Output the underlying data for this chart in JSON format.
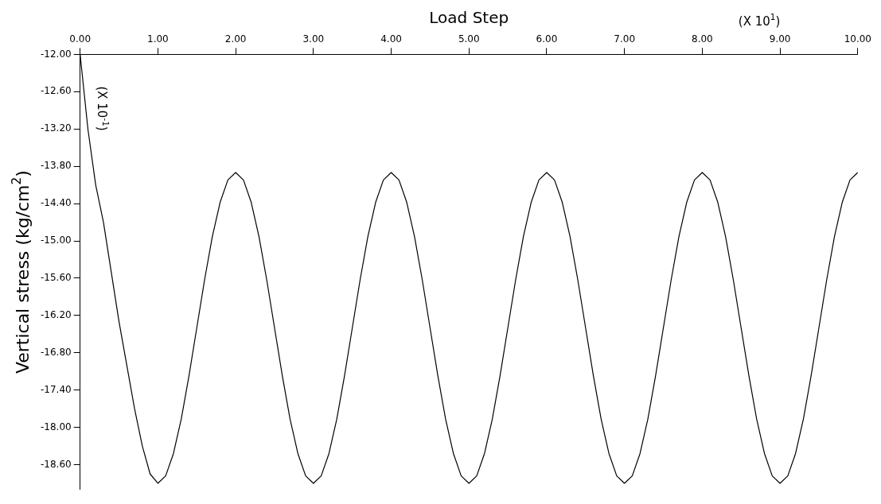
{
  "chart_data": {
    "type": "line",
    "xlabel": "Load Step",
    "ylabel": "Vertical stress (kg/cm$^{2}$)",
    "annotations": [
      "(X 10$^{1}$)",
      "(X 10$^{-1}$)"
    ],
    "xlim": [
      0,
      10
    ],
    "ylim": [
      -19.0,
      -12.0
    ],
    "xticks": [
      {
        "value": 0,
        "label": "0.00"
      },
      {
        "value": 1,
        "label": "1.00"
      },
      {
        "value": 2,
        "label": "2.00"
      },
      {
        "value": 3,
        "label": "3.00"
      },
      {
        "value": 4,
        "label": "4.00"
      },
      {
        "value": 5,
        "label": "5.00"
      },
      {
        "value": 6,
        "label": "6.00"
      },
      {
        "value": 7,
        "label": "7.00"
      },
      {
        "value": 8,
        "label": "8.00"
      },
      {
        "value": 9,
        "label": "9.00"
      },
      {
        "value": 10,
        "label": "10.00"
      }
    ],
    "yticks": [
      {
        "value": -12,
        "label": "-12.00"
      },
      {
        "value": -12.6,
        "label": "-12.60"
      },
      {
        "value": -13.2,
        "label": "-13.20"
      },
      {
        "value": -13.8,
        "label": "-13.80"
      },
      {
        "value": -14.4,
        "label": "-14.40"
      },
      {
        "value": -15,
        "label": "-15.00"
      },
      {
        "value": -15.6,
        "label": "-15.60"
      },
      {
        "value": -16.2,
        "label": "-16.20"
      },
      {
        "value": -16.8,
        "label": "-16.80"
      },
      {
        "value": -17.4,
        "label": "-17.40"
      },
      {
        "value": -18,
        "label": "-18.00"
      },
      {
        "value": -18.6,
        "label": "-18.60"
      }
    ],
    "marker": "none",
    "line_style": "solid",
    "x": [
      0,
      0.1,
      0.2,
      0.3,
      0.4,
      0.5,
      0.6,
      0.7,
      0.8,
      0.9,
      1.0,
      1.1,
      1.2,
      1.3,
      1.4,
      1.5,
      1.6,
      1.7,
      1.8,
      1.9,
      2.0,
      2.1,
      2.2,
      2.3,
      2.4,
      2.5,
      2.6,
      2.7,
      2.8,
      2.9,
      3.0,
      3.1,
      3.2,
      3.3,
      3.4,
      3.5,
      3.6,
      3.7,
      3.8,
      3.9,
      4.0,
      4.1,
      4.2,
      4.3,
      4.4,
      4.5,
      4.6,
      4.7,
      4.8,
      4.9,
      5.0,
      5.1,
      5.2,
      5.3,
      5.4,
      5.5,
      5.6,
      5.7,
      5.8,
      5.9,
      6.0,
      6.1,
      6.2,
      6.3,
      6.4,
      6.5,
      6.6,
      6.7,
      6.8,
      6.9,
      7.0,
      7.1,
      7.2,
      7.3,
      7.4,
      7.5,
      7.6,
      7.7,
      7.8,
      7.9,
      8.0,
      8.1,
      8.2,
      8.3,
      8.4,
      8.5,
      8.6,
      8.7,
      8.8,
      8.9,
      9.0,
      9.1,
      9.2,
      9.3,
      9.4,
      9.5,
      9.6,
      9.7,
      9.8,
      9.9,
      10.0
    ],
    "series": [
      {
        "color": "#000000",
        "values": [
          -12.0,
          -13.2,
          -14.1,
          -14.7,
          -15.5,
          -16.3,
          -17.0,
          -17.7,
          -18.3,
          -18.75,
          -18.9,
          -18.78,
          -18.42,
          -17.87,
          -17.17,
          -16.4,
          -15.63,
          -14.93,
          -14.38,
          -14.02,
          -13.9,
          -14.02,
          -14.38,
          -14.93,
          -15.63,
          -16.4,
          -17.17,
          -17.87,
          -18.42,
          -18.78,
          -18.9,
          -18.78,
          -18.42,
          -17.87,
          -17.17,
          -16.4,
          -15.63,
          -14.93,
          -14.38,
          -14.02,
          -13.9,
          -14.02,
          -14.38,
          -14.93,
          -15.63,
          -16.4,
          -17.17,
          -17.87,
          -18.42,
          -18.78,
          -18.9,
          -18.78,
          -18.42,
          -17.87,
          -17.17,
          -16.4,
          -15.63,
          -14.93,
          -14.38,
          -14.02,
          -13.9,
          -14.02,
          -14.38,
          -14.93,
          -15.63,
          -16.4,
          -17.17,
          -17.87,
          -18.42,
          -18.78,
          -18.9,
          -18.78,
          -18.42,
          -17.87,
          -17.17,
          -16.4,
          -15.63,
          -14.93,
          -14.38,
          -14.02,
          -13.9,
          -14.02,
          -14.38,
          -14.93,
          -15.63,
          -16.4,
          -17.17,
          -17.87,
          -18.42,
          -18.78,
          -18.9,
          -18.78,
          -18.42,
          -17.87,
          -17.17,
          -16.4,
          -15.63,
          -14.93,
          -14.38,
          -14.02,
          -13.9
        ]
      }
    ]
  }
}
